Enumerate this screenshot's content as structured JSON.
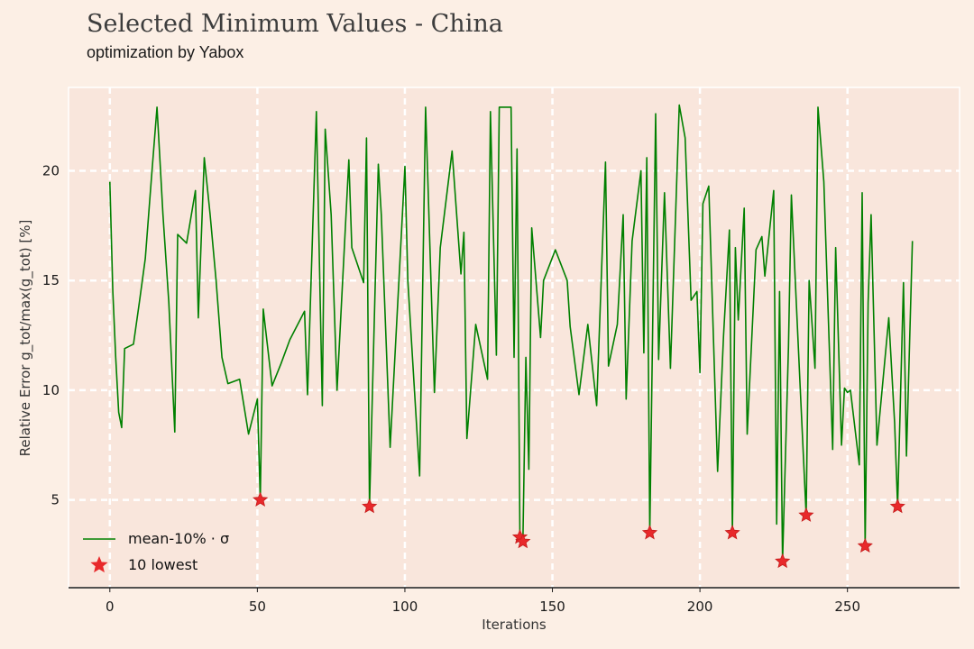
{
  "chart_data": {
    "type": "line",
    "title": "Selected Minimum Values - China",
    "subtitle": "optimization by Yabox",
    "xlabel": "Iterations",
    "ylabel": "Relative Error g_tot/max(g_tot) [%]",
    "xlim": [
      -14,
      288
    ],
    "ylim": [
      1,
      23.8
    ],
    "xticks": [
      0,
      50,
      100,
      150,
      200,
      250
    ],
    "yticks": [
      5,
      10,
      15,
      20
    ],
    "grid": true,
    "legend_position": "lower-left",
    "series": [
      {
        "name": "mean-10% · σ",
        "kind": "line",
        "color": "#008000",
        "points": [
          [
            0,
            19.5
          ],
          [
            1,
            14.5
          ],
          [
            2,
            11.5
          ],
          [
            3,
            9.0
          ],
          [
            4,
            8.3
          ],
          [
            5,
            11.9
          ],
          [
            8,
            12.1
          ],
          [
            10,
            14.0
          ],
          [
            12,
            16.0
          ],
          [
            14,
            19.5
          ],
          [
            16,
            22.9
          ],
          [
            18,
            18.0
          ],
          [
            20,
            14.0
          ],
          [
            22,
            8.1
          ],
          [
            23,
            17.1
          ],
          [
            26,
            16.7
          ],
          [
            29,
            19.1
          ],
          [
            30,
            13.3
          ],
          [
            32,
            20.6
          ],
          [
            34,
            18.0
          ],
          [
            36,
            15.0
          ],
          [
            38,
            11.5
          ],
          [
            40,
            10.3
          ],
          [
            44,
            10.5
          ],
          [
            47,
            8.0
          ],
          [
            50,
            9.6
          ],
          [
            51,
            5.0
          ],
          [
            52,
            13.7
          ],
          [
            55,
            10.2
          ],
          [
            58,
            11.2
          ],
          [
            61,
            12.3
          ],
          [
            66,
            13.6
          ],
          [
            67,
            9.8
          ],
          [
            70,
            22.7
          ],
          [
            72,
            9.3
          ],
          [
            73,
            21.9
          ],
          [
            75,
            18.0
          ],
          [
            77,
            10.0
          ],
          [
            81,
            20.5
          ],
          [
            82,
            16.5
          ],
          [
            86,
            14.9
          ],
          [
            87,
            21.5
          ],
          [
            88,
            4.7
          ],
          [
            91,
            20.3
          ],
          [
            92,
            18.0
          ],
          [
            95,
            7.4
          ],
          [
            100,
            20.2
          ],
          [
            101,
            15.0
          ],
          [
            105,
            6.1
          ],
          [
            107,
            22.9
          ],
          [
            110,
            9.9
          ],
          [
            112,
            16.5
          ],
          [
            116,
            20.9
          ],
          [
            119,
            15.3
          ],
          [
            120,
            17.2
          ],
          [
            121,
            7.8
          ],
          [
            124,
            13.0
          ],
          [
            128,
            10.5
          ],
          [
            129,
            22.7
          ],
          [
            131,
            11.6
          ],
          [
            132,
            22.9
          ],
          [
            136,
            22.9
          ],
          [
            137,
            11.5
          ],
          [
            138,
            21.0
          ],
          [
            139,
            3.3
          ],
          [
            140,
            3.1
          ],
          [
            141,
            11.5
          ],
          [
            142,
            6.4
          ],
          [
            143,
            17.4
          ],
          [
            146,
            12.4
          ],
          [
            147,
            15.0
          ],
          [
            151,
            16.4
          ],
          [
            155,
            15.0
          ],
          [
            156,
            12.9
          ],
          [
            159,
            9.8
          ],
          [
            162,
            13.0
          ],
          [
            165,
            9.3
          ],
          [
            168,
            20.4
          ],
          [
            169,
            11.1
          ],
          [
            172,
            13.0
          ],
          [
            174,
            18.0
          ],
          [
            175,
            9.6
          ],
          [
            177,
            16.8
          ],
          [
            180,
            20.0
          ],
          [
            181,
            11.7
          ],
          [
            182,
            20.6
          ],
          [
            183,
            3.5
          ],
          [
            185,
            22.6
          ],
          [
            186,
            11.4
          ],
          [
            188,
            19.0
          ],
          [
            190,
            11.0
          ],
          [
            193,
            23.0
          ],
          [
            195,
            21.5
          ],
          [
            197,
            14.1
          ],
          [
            199,
            14.5
          ],
          [
            200,
            10.8
          ],
          [
            201,
            18.5
          ],
          [
            203,
            19.3
          ],
          [
            205,
            10.5
          ],
          [
            206,
            6.3
          ],
          [
            208,
            12.5
          ],
          [
            210,
            17.3
          ],
          [
            211,
            3.5
          ],
          [
            212,
            16.5
          ],
          [
            213,
            13.2
          ],
          [
            215,
            18.3
          ],
          [
            216,
            8.0
          ],
          [
            219,
            16.4
          ],
          [
            221,
            17.0
          ],
          [
            222,
            15.2
          ],
          [
            225,
            19.1
          ],
          [
            226,
            3.9
          ],
          [
            227,
            14.5
          ],
          [
            228,
            2.2
          ],
          [
            230,
            12.0
          ],
          [
            231,
            18.9
          ],
          [
            234,
            10.1
          ],
          [
            236,
            4.3
          ],
          [
            237,
            15.0
          ],
          [
            239,
            11.0
          ],
          [
            240,
            22.9
          ],
          [
            242,
            19.5
          ],
          [
            245,
            7.3
          ],
          [
            246,
            16.5
          ],
          [
            248,
            7.5
          ],
          [
            249,
            10.1
          ],
          [
            250,
            9.9
          ],
          [
            251,
            10.0
          ],
          [
            254,
            6.6
          ],
          [
            255,
            19.0
          ],
          [
            256,
            2.9
          ],
          [
            257,
            14.0
          ],
          [
            258,
            18.0
          ],
          [
            260,
            7.5
          ],
          [
            264,
            13.3
          ],
          [
            266,
            8.5
          ],
          [
            267,
            4.7
          ],
          [
            269,
            14.9
          ],
          [
            270,
            7.0
          ],
          [
            272,
            16.8
          ]
        ]
      },
      {
        "name": "10 lowest",
        "kind": "scatter",
        "color": "#e8292b",
        "points": [
          [
            51,
            5.0
          ],
          [
            88,
            4.7
          ],
          [
            139,
            3.3
          ],
          [
            140,
            3.1
          ],
          [
            183,
            3.5
          ],
          [
            211,
            3.5
          ],
          [
            228,
            2.2
          ],
          [
            236,
            4.3
          ],
          [
            256,
            2.9
          ],
          [
            267,
            4.7
          ]
        ]
      }
    ]
  }
}
